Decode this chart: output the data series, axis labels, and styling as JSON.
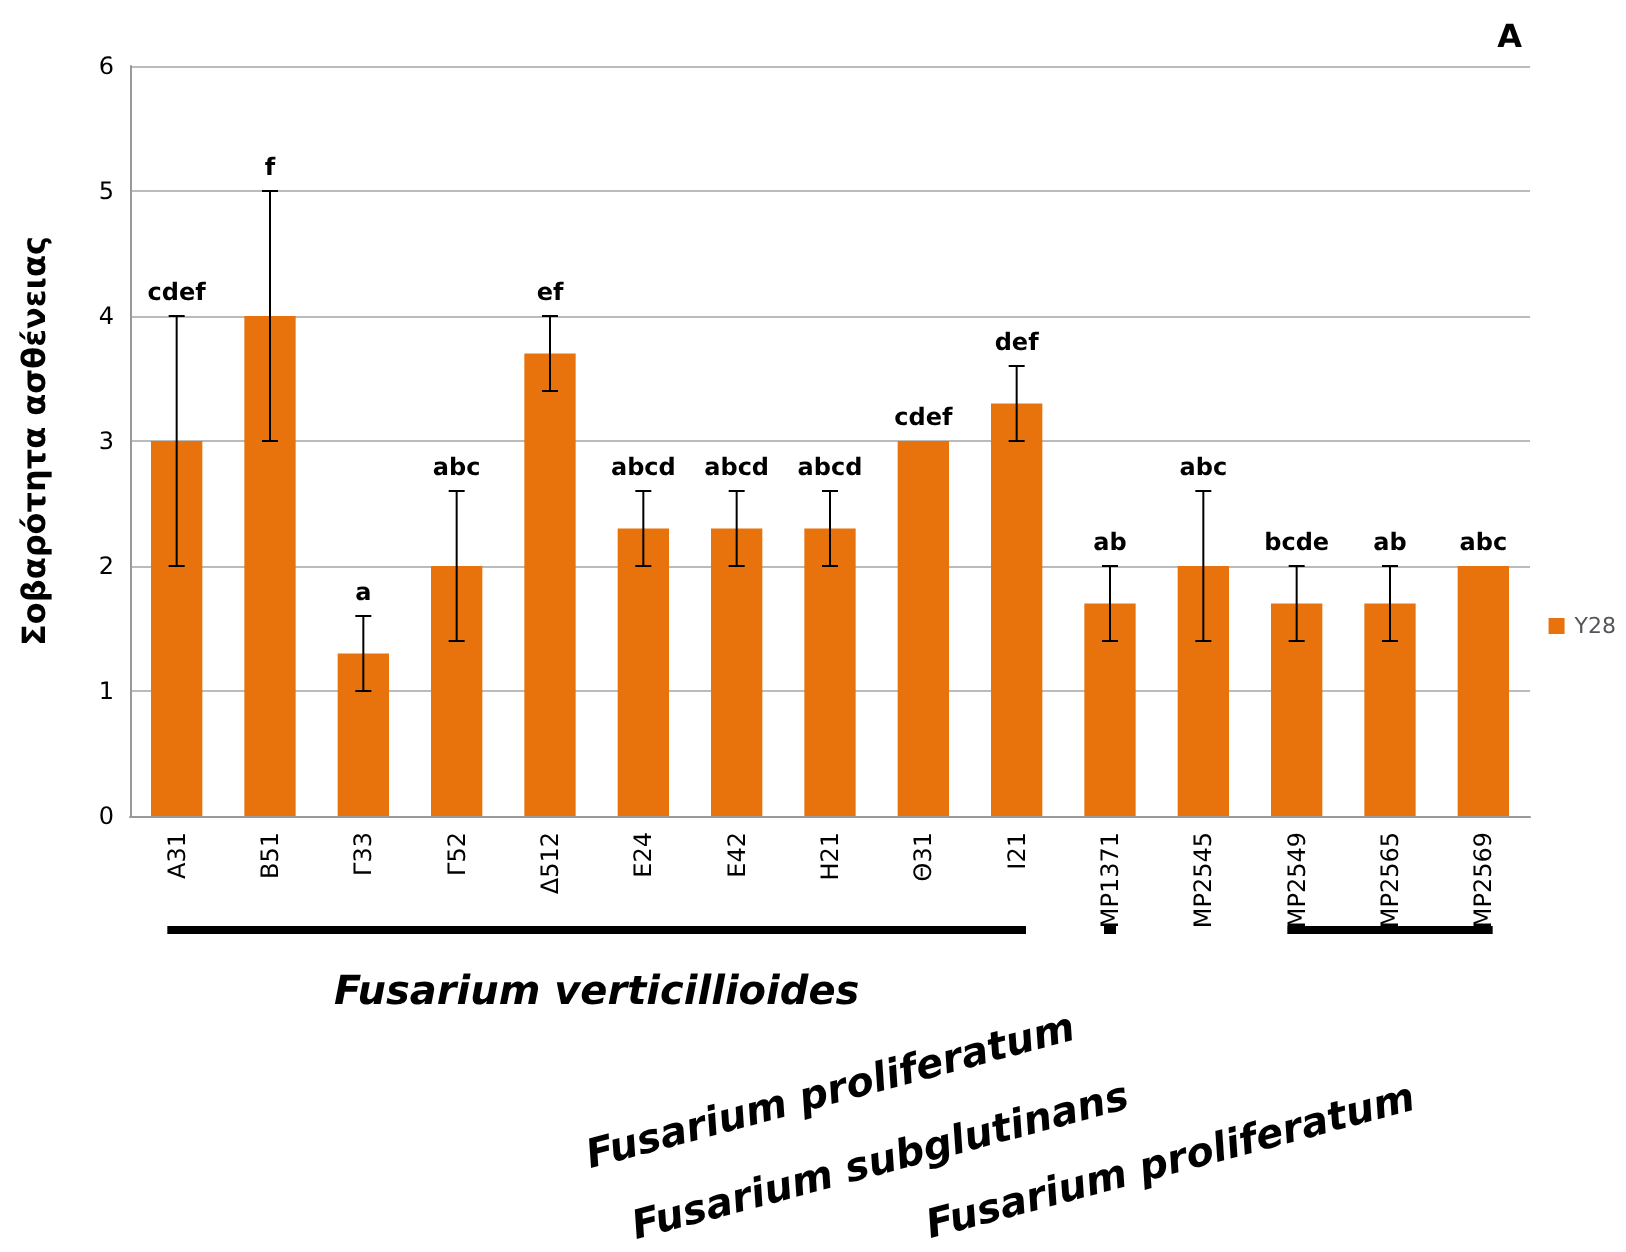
{
  "chart_data": {
    "type": "bar",
    "ylabel": "Σοβαρότητα ασθένειας",
    "categories": [
      "A31",
      "B51",
      "Γ33",
      "Γ52",
      "Δ512",
      "E24",
      "E42",
      "H21",
      "Θ31",
      "I21",
      "MP1371",
      "MP2545",
      "MP2549",
      "MP2565",
      "MP2569"
    ],
    "series": [
      {
        "name": "Y28",
        "color": "#e8720c",
        "values": [
          3,
          4,
          1.3,
          2,
          3.7,
          2.3,
          2.3,
          2.3,
          3,
          3.3,
          1.7,
          2,
          1.7,
          1.7,
          2
        ],
        "errors": [
          1,
          1,
          0.3,
          0.6,
          0.3,
          0.3,
          0.3,
          0.3,
          null,
          0.3,
          0.3,
          0.6,
          0.3,
          0.3,
          null
        ]
      }
    ],
    "ylim": [
      0,
      6
    ],
    "yticks": [
      0,
      1,
      2,
      3,
      4,
      5,
      6
    ],
    "grid": "y",
    "legend": "right",
    "annotations": [
      "A",
      "Fusarium verticillioides",
      "Fusarium proliferatum",
      "Fusarium subglutinans",
      "Fusarium proliferatum",
      {
        "text": "cdef",
        "x": "A31",
        "y": 4
      },
      {
        "text": "f",
        "x": "B51",
        "y": 5
      },
      {
        "text": "a",
        "x": "Γ33",
        "y": 1.6
      },
      {
        "text": "abc",
        "x": "Γ52",
        "y": 2.6
      },
      {
        "text": "ef",
        "x": "Δ512",
        "y": 4
      },
      {
        "text": "abcd",
        "x": "E24",
        "y": 2.6
      },
      {
        "text": "abcd",
        "x": "E42",
        "y": 2.6
      },
      {
        "text": "abcd",
        "x": "H21",
        "y": 2.6
      },
      {
        "text": "cdef",
        "x": "Θ31",
        "y": 3
      },
      {
        "text": "def",
        "x": "I21",
        "y": 3.6
      },
      {
        "text": "ab",
        "x": "MP1371",
        "y": 2
      },
      {
        "text": "abc",
        "x": "MP2545",
        "y": 2.6
      },
      {
        "text": "bcde",
        "x": "MP2549",
        "y": 2
      },
      {
        "text": "ab",
        "x": "MP2565",
        "y": 2
      },
      {
        "text": "abc",
        "x": "MP2569",
        "y": 2
      }
    ]
  }
}
